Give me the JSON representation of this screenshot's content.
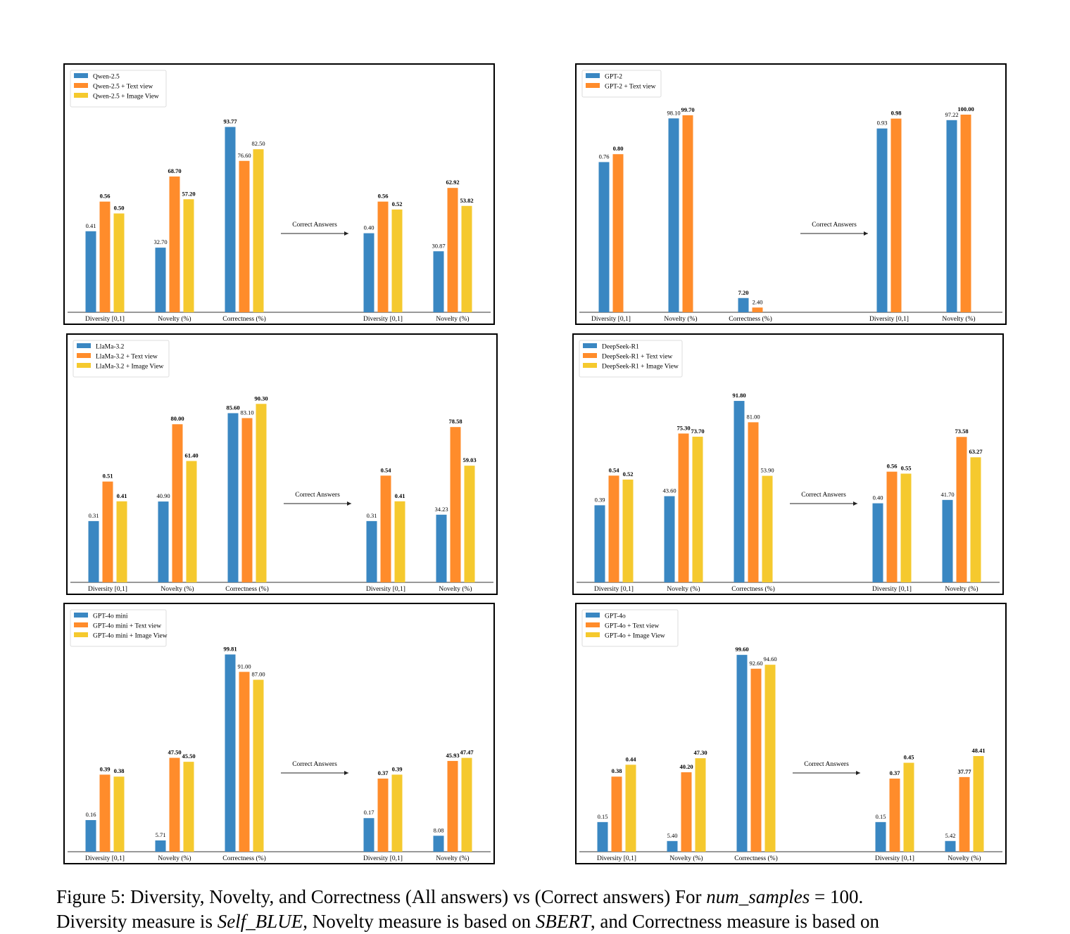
{
  "chart_data": [
    {
      "type": "bar",
      "legend": [
        "Qwen-2.5",
        "Qwen-2.5 + Text view",
        "Qwen-2.5 + Image View"
      ],
      "categories": [
        "Diversity [0,1]",
        "Novelty (%)",
        "Correctness (%)",
        "Diversity [0,1]",
        "Novelty (%)"
      ],
      "groups": [
        [
          {
            "v": 0.41,
            "label": "0.41",
            "bold": false
          },
          {
            "v": 0.56,
            "label": "0.56",
            "bold": true
          },
          {
            "v": 0.5,
            "label": "0.50",
            "bold": true
          }
        ],
        [
          {
            "v": 32.7,
            "label": "32.70",
            "bold": false
          },
          {
            "v": 68.7,
            "label": "68.70",
            "bold": true
          },
          {
            "v": 57.2,
            "label": "57.20",
            "bold": true
          }
        ],
        [
          {
            "v": 93.77,
            "label": "93.77",
            "bold": true
          },
          {
            "v": 76.6,
            "label": "76.60",
            "bold": false
          },
          {
            "v": 82.5,
            "label": "82.50",
            "bold": false
          }
        ],
        [
          {
            "v": 0.4,
            "label": "0.40",
            "bold": false
          },
          {
            "v": 0.56,
            "label": "0.56",
            "bold": true
          },
          {
            "v": 0.52,
            "label": "0.52",
            "bold": true
          }
        ],
        [
          {
            "v": 30.87,
            "label": "30.87",
            "bold": false
          },
          {
            "v": 62.92,
            "label": "62.92",
            "bold": true
          },
          {
            "v": 53.82,
            "label": "53.82",
            "bold": true
          }
        ]
      ],
      "arrow_label": "Correct Answers"
    },
    {
      "type": "bar",
      "legend": [
        "GPT-2",
        "GPT-2 + Text view"
      ],
      "categories": [
        "Diversity [0,1]",
        "Novelty (%)",
        "Correctness (%)",
        "Diversity [0,1]",
        "Novelty (%)"
      ],
      "groups": [
        [
          {
            "v": 0.76,
            "label": "0.76",
            "bold": false
          },
          {
            "v": 0.8,
            "label": "0.80",
            "bold": true
          }
        ],
        [
          {
            "v": 98.1,
            "label": "98.10",
            "bold": false
          },
          {
            "v": 99.7,
            "label": "99.70",
            "bold": true
          }
        ],
        [
          {
            "v": 7.2,
            "label": "7.20",
            "bold": true
          },
          {
            "v": 2.4,
            "label": "2.40",
            "bold": false
          }
        ],
        [
          {
            "v": 0.93,
            "label": "0.93",
            "bold": false
          },
          {
            "v": 0.98,
            "label": "0.98",
            "bold": true
          }
        ],
        [
          {
            "v": 97.22,
            "label": "97.22",
            "bold": false
          },
          {
            "v": 100.0,
            "label": "100.00",
            "bold": true
          }
        ]
      ],
      "arrow_label": "Correct Answers"
    },
    {
      "type": "bar",
      "legend": [
        "LlaMa-3.2",
        "LlaMa-3.2 + Text view",
        "LlaMa-3.2 + Image View"
      ],
      "categories": [
        "Diversity [0,1]",
        "Novelty (%)",
        "Correctness (%)",
        "Diversity [0,1]",
        "Novelty (%)"
      ],
      "groups": [
        [
          {
            "v": 0.31,
            "label": "0.31",
            "bold": false
          },
          {
            "v": 0.51,
            "label": "0.51",
            "bold": true
          },
          {
            "v": 0.41,
            "label": "0.41",
            "bold": true
          }
        ],
        [
          {
            "v": 40.9,
            "label": "40.90",
            "bold": false
          },
          {
            "v": 80.0,
            "label": "80.00",
            "bold": true
          },
          {
            "v": 61.4,
            "label": "61.40",
            "bold": true
          }
        ],
        [
          {
            "v": 85.6,
            "label": "85.60",
            "bold": true
          },
          {
            "v": 83.1,
            "label": "83.10",
            "bold": false
          },
          {
            "v": 90.3,
            "label": "90.30",
            "bold": true
          }
        ],
        [
          {
            "v": 0.31,
            "label": "0.31",
            "bold": false
          },
          {
            "v": 0.54,
            "label": "0.54",
            "bold": true
          },
          {
            "v": 0.41,
            "label": "0.41",
            "bold": true
          }
        ],
        [
          {
            "v": 34.23,
            "label": "34.23",
            "bold": false
          },
          {
            "v": 78.58,
            "label": "78.58",
            "bold": true
          },
          {
            "v": 59.03,
            "label": "59.03",
            "bold": true
          }
        ]
      ],
      "arrow_label": "Correct Answers"
    },
    {
      "type": "bar",
      "legend": [
        "DeepSeek-R1",
        "DeepSeek-R1 + Text view",
        "DeepSeek-R1 + Image View"
      ],
      "categories": [
        "Diversity [0,1]",
        "Novelty (%)",
        "Correctness (%)",
        "Diversity [0,1]",
        "Novelty (%)"
      ],
      "groups": [
        [
          {
            "v": 0.39,
            "label": "0.39",
            "bold": false
          },
          {
            "v": 0.54,
            "label": "0.54",
            "bold": true
          },
          {
            "v": 0.52,
            "label": "0.52",
            "bold": true
          }
        ],
        [
          {
            "v": 43.6,
            "label": "43.60",
            "bold": false
          },
          {
            "v": 75.3,
            "label": "75.30",
            "bold": true
          },
          {
            "v": 73.7,
            "label": "73.70",
            "bold": true
          }
        ],
        [
          {
            "v": 91.8,
            "label": "91.80",
            "bold": true
          },
          {
            "v": 81.0,
            "label": "81.00",
            "bold": false
          },
          {
            "v": 53.9,
            "label": "53.90",
            "bold": false
          }
        ],
        [
          {
            "v": 0.4,
            "label": "0.40",
            "bold": false
          },
          {
            "v": 0.56,
            "label": "0.56",
            "bold": true
          },
          {
            "v": 0.55,
            "label": "0.55",
            "bold": true
          }
        ],
        [
          {
            "v": 41.7,
            "label": "41.70",
            "bold": false
          },
          {
            "v": 73.58,
            "label": "73.58",
            "bold": true
          },
          {
            "v": 63.27,
            "label": "63.27",
            "bold": true
          }
        ]
      ],
      "arrow_label": "Correct Answers"
    },
    {
      "type": "bar",
      "legend": [
        "GPT-4o mini",
        "GPT-4o mini + Text view",
        "GPT-4o mini + Image View"
      ],
      "categories": [
        "Diversity [0,1]",
        "Novelty (%)",
        "Correctness (%)",
        "Diversity [0,1]",
        "Novelty (%)"
      ],
      "groups": [
        [
          {
            "v": 0.16,
            "label": "0.16",
            "bold": false
          },
          {
            "v": 0.39,
            "label": "0.39",
            "bold": true
          },
          {
            "v": 0.38,
            "label": "0.38",
            "bold": true
          }
        ],
        [
          {
            "v": 5.71,
            "label": "5.71",
            "bold": false
          },
          {
            "v": 47.5,
            "label": "47.50",
            "bold": true
          },
          {
            "v": 45.5,
            "label": "45.50",
            "bold": true
          }
        ],
        [
          {
            "v": 99.81,
            "label": "99.81",
            "bold": true
          },
          {
            "v": 91.0,
            "label": "91.00",
            "bold": false
          },
          {
            "v": 87.0,
            "label": "87.00",
            "bold": false
          }
        ],
        [
          {
            "v": 0.17,
            "label": "0.17",
            "bold": false
          },
          {
            "v": 0.37,
            "label": "0.37",
            "bold": true
          },
          {
            "v": 0.39,
            "label": "0.39",
            "bold": true
          }
        ],
        [
          {
            "v": 8.08,
            "label": "8.08",
            "bold": false
          },
          {
            "v": 45.93,
            "label": "45.93",
            "bold": true
          },
          {
            "v": 47.47,
            "label": "47.47",
            "bold": true
          }
        ]
      ],
      "arrow_label": "Correct Answers"
    },
    {
      "type": "bar",
      "legend": [
        "GPT-4o",
        "GPT-4o + Text view",
        "GPT-4o + Image View"
      ],
      "categories": [
        "Diversity [0,1]",
        "Novelty (%)",
        "Correctness (%)",
        "Diversity [0,1]",
        "Novelty (%)"
      ],
      "groups": [
        [
          {
            "v": 0.15,
            "label": "0.15",
            "bold": false
          },
          {
            "v": 0.38,
            "label": "0.38",
            "bold": true
          },
          {
            "v": 0.44,
            "label": "0.44",
            "bold": true
          }
        ],
        [
          {
            "v": 5.4,
            "label": "5.40",
            "bold": false
          },
          {
            "v": 40.2,
            "label": "40.20",
            "bold": true
          },
          {
            "v": 47.3,
            "label": "47.30",
            "bold": true
          }
        ],
        [
          {
            "v": 99.6,
            "label": "99.60",
            "bold": true
          },
          {
            "v": 92.6,
            "label": "92.60",
            "bold": false
          },
          {
            "v": 94.6,
            "label": "94.60",
            "bold": false
          }
        ],
        [
          {
            "v": 0.15,
            "label": "0.15",
            "bold": false
          },
          {
            "v": 0.37,
            "label": "0.37",
            "bold": true
          },
          {
            "v": 0.45,
            "label": "0.45",
            "bold": true
          }
        ],
        [
          {
            "v": 5.42,
            "label": "5.42",
            "bold": false
          },
          {
            "v": 37.77,
            "label": "37.77",
            "bold": true
          },
          {
            "v": 48.41,
            "label": "48.41",
            "bold": true
          }
        ]
      ],
      "arrow_label": "Correct Answers"
    }
  ],
  "colors": [
    "#3a87c2",
    "#ff8c2b",
    "#f5c92e"
  ],
  "caption": {
    "line1_prefix": "Figure 5:  Diversity, Novelty, and Correctness (All answers) vs (Correct answers) For ",
    "line1_math": "num_samples",
    "line1_suffix": " = 100.",
    "line2_a": "Diversity measure is ",
    "line2_math1": "Self_BLUE",
    "line2_b": ", Novelty measure is based on ",
    "line2_math2": "SBERT",
    "line2_c": ", and Correctness measure is based on"
  }
}
